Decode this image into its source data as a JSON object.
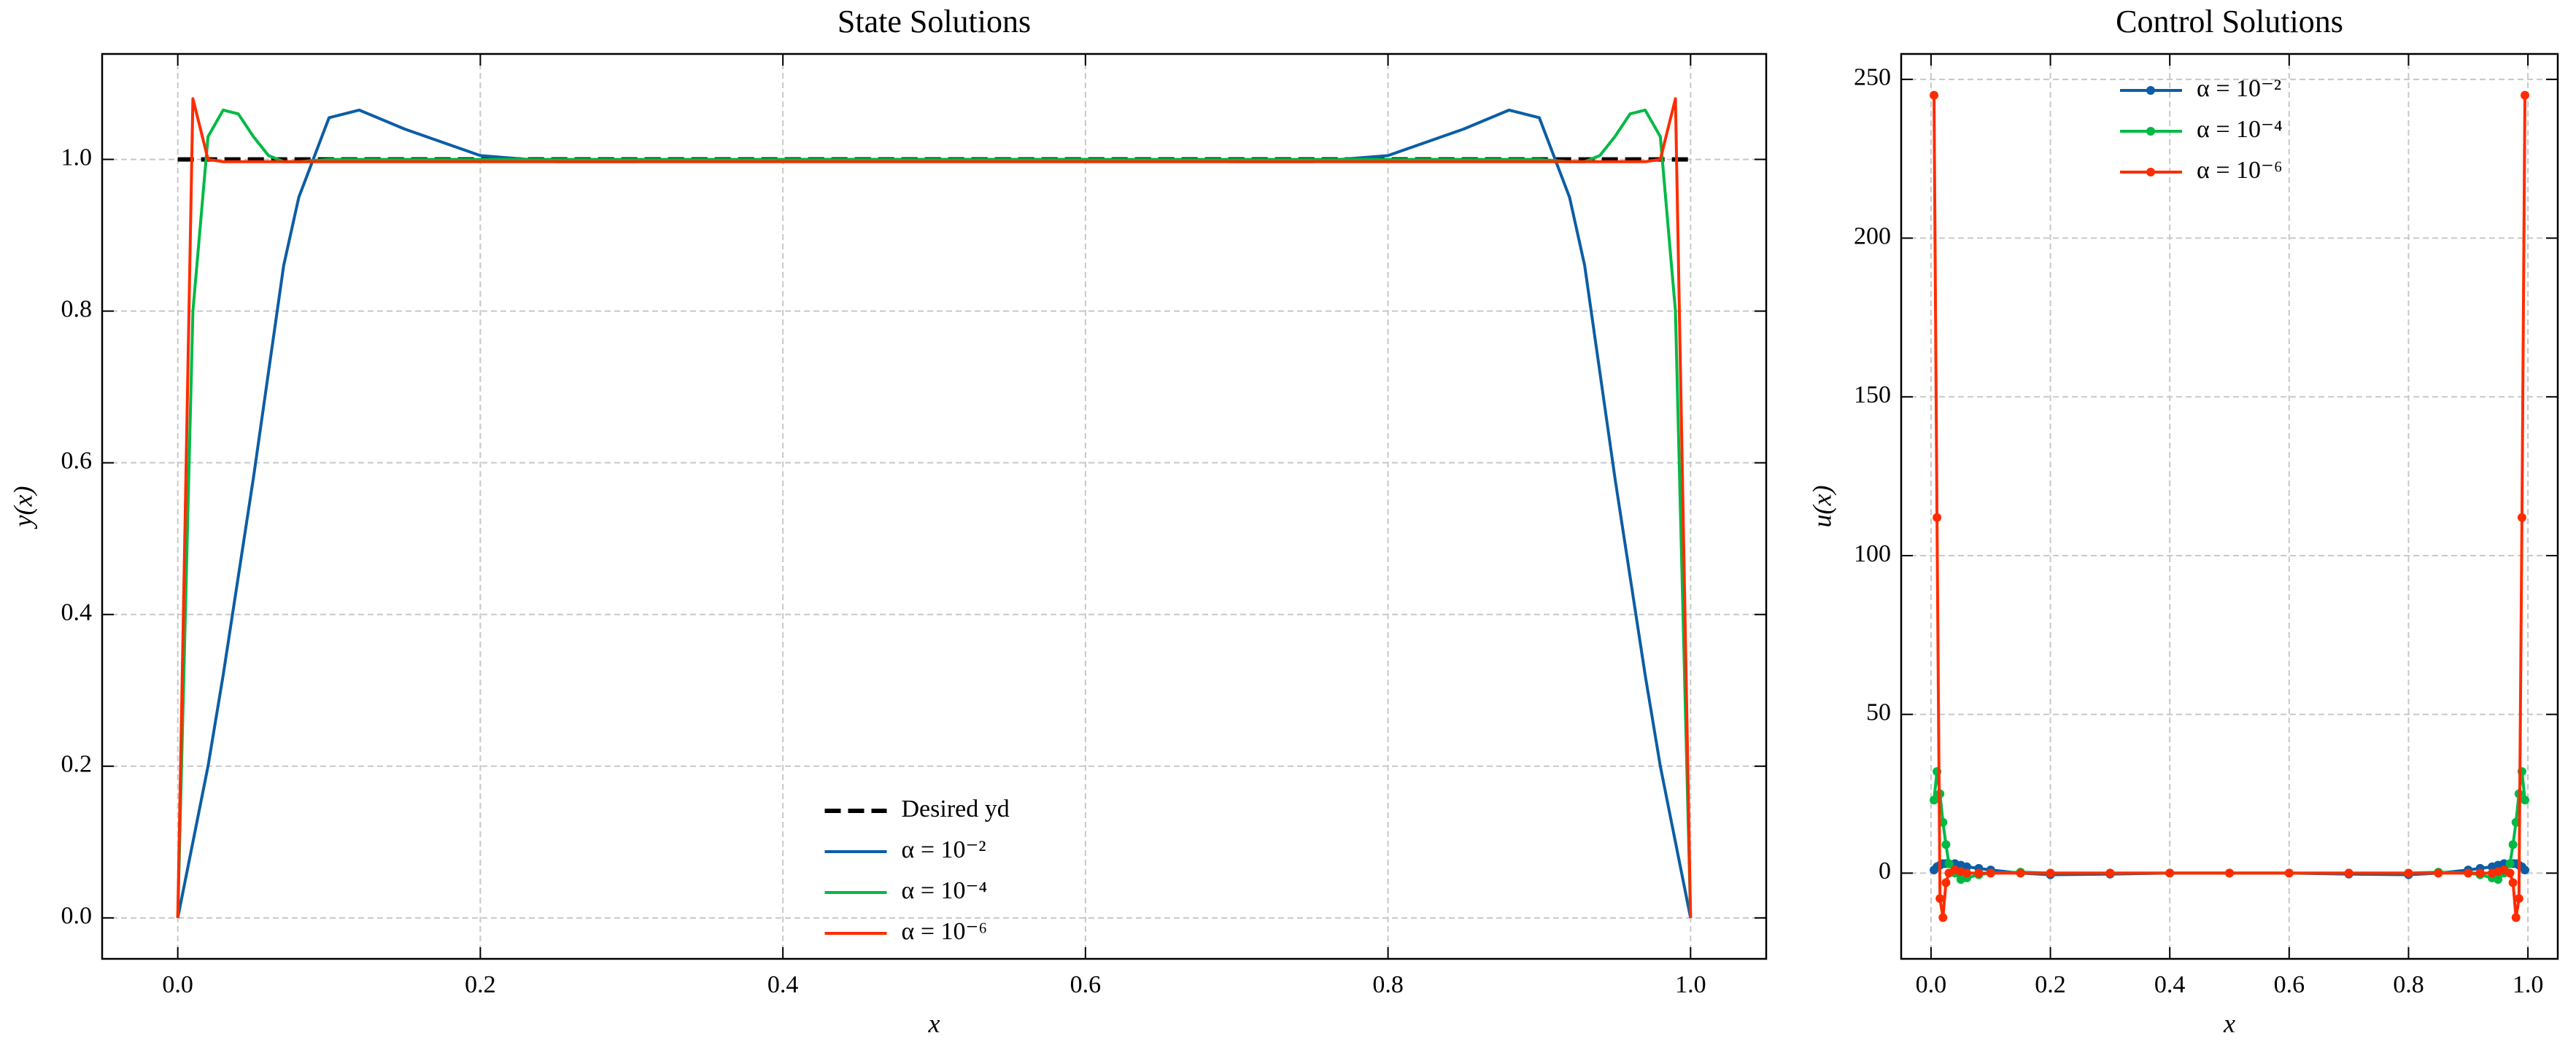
{
  "chart_data": [
    {
      "type": "line",
      "title": "State Solutions",
      "xlabel": "x",
      "ylabel": "y(x)",
      "xlim": [
        -0.05,
        1.05
      ],
      "ylim": [
        -0.054,
        1.139
      ],
      "xticks": [
        {
          "value": 0,
          "label": "0.0"
        },
        {
          "value": 0.2,
          "label": "0.2"
        },
        {
          "value": 0.4,
          "label": "0.4"
        },
        {
          "value": 0.6,
          "label": "0.6"
        },
        {
          "value": 0.8,
          "label": "0.8"
        },
        {
          "value": 1,
          "label": "1.0"
        }
      ],
      "yticks": [
        {
          "value": 0,
          "label": "0.0"
        },
        {
          "value": 0.2,
          "label": "0.2"
        },
        {
          "value": 0.4,
          "label": "0.4"
        },
        {
          "value": 0.6,
          "label": "0.6"
        },
        {
          "value": 0.8,
          "label": "0.8"
        },
        {
          "value": 1,
          "label": "1.0"
        }
      ],
      "grid": true,
      "legend_loc": "lower center",
      "series": [
        {
          "name": "Desired yd",
          "color": "#000000",
          "linestyle": "dashed",
          "x": [
            0,
            1
          ],
          "values": [
            1,
            1
          ]
        },
        {
          "name": "α = 10⁻²",
          "color": "#0C5DA5",
          "linestyle": "solid",
          "x": [
            0,
            0.01,
            0.02,
            0.03,
            0.04,
            0.05,
            0.06,
            0.07,
            0.08,
            0.1,
            0.12,
            0.15,
            0.2,
            0.25,
            0.3,
            0.4,
            0.5,
            0.6,
            0.7,
            0.75,
            0.8,
            0.85,
            0.88,
            0.9,
            0.92,
            0.93,
            0.94,
            0.95,
            0.96,
            0.97,
            0.98,
            0.99,
            1
          ],
          "values": [
            0,
            0.1,
            0.2,
            0.32,
            0.45,
            0.58,
            0.72,
            0.86,
            0.95,
            1.055,
            1.065,
            1.04,
            1.005,
            0.997,
            0.997,
            1,
            1,
            1,
            0.997,
            0.997,
            1.005,
            1.04,
            1.065,
            1.055,
            0.95,
            0.86,
            0.72,
            0.58,
            0.45,
            0.32,
            0.2,
            0.1,
            0
          ]
        },
        {
          "name": "α = 10⁻⁴",
          "color": "#00B945",
          "linestyle": "solid",
          "x": [
            0,
            0.01,
            0.02,
            0.03,
            0.04,
            0.05,
            0.06,
            0.07,
            0.08,
            0.1,
            0.9,
            0.92,
            0.93,
            0.94,
            0.95,
            0.96,
            0.97,
            0.98,
            0.99,
            1
          ],
          "values": [
            0,
            0.8,
            1.03,
            1.065,
            1.06,
            1.03,
            1.005,
            0.997,
            0.997,
            1,
            1,
            0.997,
            0.997,
            1.005,
            1.03,
            1.06,
            1.065,
            1.03,
            0.8,
            0
          ]
        },
        {
          "name": "α = 10⁻⁶",
          "color": "#FF2C00",
          "linestyle": "solid",
          "x": [
            0,
            0.01,
            0.02,
            0.03,
            0.97,
            0.98,
            0.99,
            1
          ],
          "values": [
            0,
            1.08,
            1,
            0.997,
            0.997,
            1,
            1.08,
            0
          ]
        }
      ]
    },
    {
      "type": "line",
      "title": "Control Solutions",
      "xlabel": "x",
      "ylabel": "u(x)",
      "xlim": [
        -0.05,
        1.05
      ],
      "ylim": [
        -27,
        258
      ],
      "xticks": [
        {
          "value": 0,
          "label": "0.0"
        },
        {
          "value": 0.2,
          "label": "0.2"
        },
        {
          "value": 0.4,
          "label": "0.4"
        },
        {
          "value": 0.6,
          "label": "0.6"
        },
        {
          "value": 0.8,
          "label": "0.8"
        },
        {
          "value": 1,
          "label": "1.0"
        }
      ],
      "yticks": [
        0,
        50,
        100,
        150,
        200,
        250
      ],
      "grid": true,
      "legend_loc": "upper center",
      "series": [
        {
          "name": "α = 10⁻²",
          "color": "#0C5DA5",
          "linestyle": "solid",
          "marker": "circle",
          "x": [
            0.005,
            0.01,
            0.015,
            0.02,
            0.025,
            0.03,
            0.04,
            0.05,
            0.06,
            0.08,
            0.1,
            0.15,
            0.2,
            0.3,
            0.4,
            0.5,
            0.6,
            0.7,
            0.8,
            0.85,
            0.9,
            0.92,
            0.94,
            0.95,
            0.96,
            0.97,
            0.975,
            0.98,
            0.985,
            0.99,
            0.995
          ],
          "values": [
            1,
            2,
            2.5,
            3,
            3,
            3,
            3,
            2.5,
            2,
            1.5,
            1,
            0,
            -0.5,
            -0.3,
            0,
            0,
            0,
            -0.3,
            -0.5,
            0,
            1,
            1.5,
            2,
            2.5,
            3,
            3,
            3,
            3,
            2.5,
            2,
            1
          ]
        },
        {
          "name": "α = 10⁻⁴",
          "color": "#00B945",
          "linestyle": "solid",
          "marker": "circle",
          "x": [
            0.005,
            0.01,
            0.015,
            0.02,
            0.025,
            0.03,
            0.04,
            0.05,
            0.06,
            0.08,
            0.1,
            0.15,
            0.2,
            0.3,
            0.4,
            0.5,
            0.6,
            0.7,
            0.8,
            0.85,
            0.9,
            0.92,
            0.94,
            0.95,
            0.96,
            0.97,
            0.975,
            0.98,
            0.985,
            0.99,
            0.995
          ],
          "values": [
            23,
            32,
            25,
            16,
            9,
            3,
            0,
            -2,
            -1.5,
            -0.5,
            0,
            0.3,
            0,
            0,
            0,
            0,
            0,
            0,
            0,
            0.3,
            0,
            -0.5,
            -1.5,
            -2,
            0,
            3,
            9,
            16,
            25,
            32,
            23
          ]
        },
        {
          "name": "α = 10⁻⁶",
          "color": "#FF2C00",
          "linestyle": "solid",
          "marker": "circle",
          "x": [
            0.005,
            0.01,
            0.015,
            0.02,
            0.025,
            0.03,
            0.04,
            0.05,
            0.06,
            0.08,
            0.1,
            0.15,
            0.2,
            0.3,
            0.4,
            0.5,
            0.6,
            0.7,
            0.8,
            0.85,
            0.9,
            0.92,
            0.94,
            0.95,
            0.96,
            0.97,
            0.975,
            0.98,
            0.985,
            0.99,
            0.995
          ],
          "values": [
            245,
            112,
            -8,
            -14,
            -3,
            0,
            1,
            0.5,
            0,
            0,
            0,
            0,
            0,
            0,
            0,
            0,
            0,
            0,
            0,
            0,
            0,
            0,
            0,
            0.5,
            1,
            0,
            -3,
            -14,
            -8,
            112,
            245
          ]
        }
      ]
    }
  ]
}
